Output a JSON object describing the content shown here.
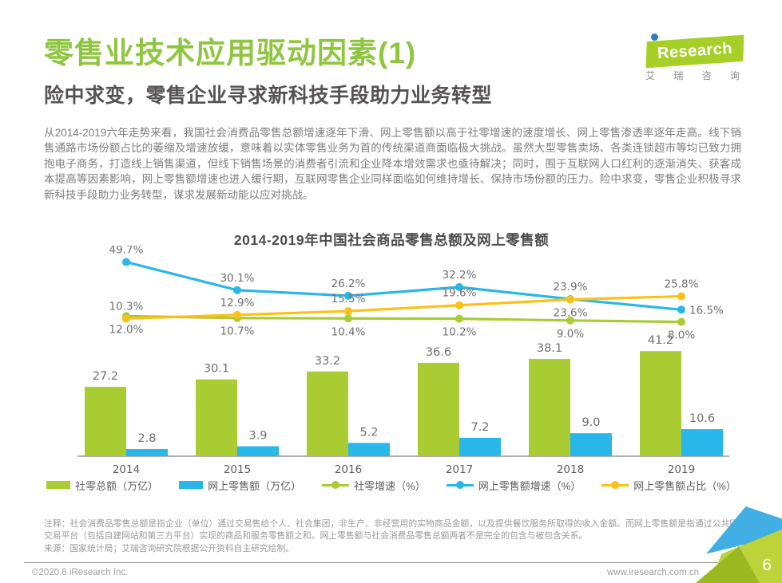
{
  "header": {
    "title": "零售业技术应用驱动因素(1)",
    "subtitle": "险中求变，零售企业寻求新科技手段助力业务转型",
    "title_color": "#8fc640"
  },
  "logo": {
    "brand": "iResearch",
    "brand_display": "Research",
    "subtext": "艾 瑞 咨 询",
    "shape_color": "#a6cf27",
    "dot_color": "#2a7ec5"
  },
  "body": {
    "paragraph": "从2014-2019六年走势来看，我国社会消费品零售总额增速逐年下滑、网上零售额以高于社零增速的速度增长、网上零售渗透率逐年走高。线下销售通路市场份额占比的萎缩及增速放缓，意味着以实体零售业务为首的传统渠道商面临极大挑战。虽然大型零售卖场、各类连锁超市等均已致力拥抱电子商务，打造线上销售渠道，但线下销售场景的消费者引流和企业降本增效需求也亟待解决；同时，囿于互联网人口红利的逐渐消失、获客成本提高等因素影响，网上零售额增速也进入缓行期，互联网零售企业同样面临如何维持增长、保持市场份额的压力。险中求变，零售企业积极寻求新科技手段助力业务转型，谋求发展新动能以应对挑战。"
  },
  "chart_data": {
    "type": "bar",
    "subtype": "bar-line combo",
    "title": "2014-2019年中国社会商品零售总额及网上零售额",
    "categories": [
      "2014",
      "2015",
      "2016",
      "2017",
      "2018",
      "2019"
    ],
    "series": [
      {
        "name": "社零总额（万亿）",
        "type": "bar",
        "color": "#a8cc32",
        "values": [
          27.2,
          30.1,
          33.2,
          36.6,
          38.1,
          41.2
        ]
      },
      {
        "name": "网上零售额（万亿）",
        "type": "bar",
        "color": "#29b6e8",
        "values": [
          2.8,
          3.9,
          5.2,
          7.2,
          9.0,
          10.6
        ]
      },
      {
        "name": "社零增速（%）",
        "type": "line",
        "color": "#a8cc32",
        "values": [
          12.0,
          10.7,
          10.4,
          10.2,
          9.0,
          8.0
        ]
      },
      {
        "name": "网上零售额增速（%）",
        "type": "line",
        "color": "#29b6e8",
        "values": [
          49.7,
          30.1,
          26.2,
          32.2,
          23.9,
          16.5
        ]
      },
      {
        "name": "网上零售额占比（%）",
        "type": "line",
        "color": "#fbc116",
        "values": [
          10.3,
          12.9,
          15.5,
          19.6,
          23.6,
          25.8
        ]
      }
    ],
    "xlabel": "",
    "ylabel": "",
    "grid": false,
    "legend_position": "bottom",
    "axis_line_color": "#999999",
    "label_color": "#6f6f6f"
  },
  "notes": {
    "definition": "注释：社会消费品零售总额是指企业（单位）通过交易售给个人、社会集团，非生产、非经营用的实物商品金额，以及提供餐饮服务所取得的收入金额。而网上零售额是指通过公共网络交易平台（包括自建网站和第三方平台）实现的商品和服务零售额之和。网上零售额与社会消费品零售总额两者不是完全的包含与被包含关系。",
    "source": "来源：国家统计局；艾瑞咨询研究院根据公开资料自主研究绘制。"
  },
  "footer": {
    "copyright": "©2020.6 iResearch Inc.",
    "website": "www.iresearch.com.cn",
    "page_number": "6"
  }
}
